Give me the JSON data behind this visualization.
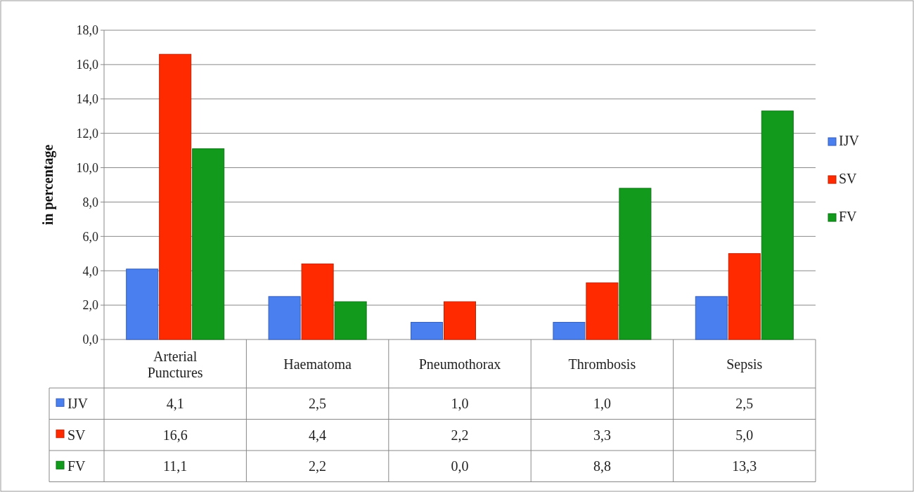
{
  "chart_data": {
    "type": "bar",
    "ylabel": "in percentage",
    "categories": [
      "Arterial Punctures",
      "Haematoma",
      "Pneumothorax",
      "Thrombosis",
      "Sepsis"
    ],
    "series": [
      {
        "name": "IJV",
        "color": "#4a7ff0",
        "values": [
          4.1,
          2.5,
          1.0,
          1.0,
          2.5
        ],
        "value_labels": [
          "4,1",
          "2,5",
          "1,0",
          "1,0",
          "2,5"
        ]
      },
      {
        "name": "SV",
        "color": "#ff2a00",
        "values": [
          16.6,
          4.4,
          2.2,
          3.3,
          5.0
        ],
        "value_labels": [
          "16,6",
          "4,4",
          "2,2",
          "3,3",
          "5,0"
        ]
      },
      {
        "name": "FV",
        "color": "#119a1c",
        "values": [
          11.1,
          2.2,
          0.0,
          8.8,
          13.3
        ],
        "value_labels": [
          "11,1",
          "2,2",
          "0,0",
          "8,8",
          "13,3"
        ]
      }
    ],
    "ylim": [
      0,
      18
    ],
    "yticks": [
      {
        "value": 0,
        "label": "0,0"
      },
      {
        "value": 2,
        "label": "2,0"
      },
      {
        "value": 4,
        "label": "4,0"
      },
      {
        "value": 6,
        "label": "6,0"
      },
      {
        "value": 8,
        "label": "8,0"
      },
      {
        "value": 10,
        "label": "10,0"
      },
      {
        "value": 12,
        "label": "12,0"
      },
      {
        "value": 14,
        "label": "14,0"
      },
      {
        "value": 16,
        "label": "16,0"
      },
      {
        "value": 18,
        "label": "18,0"
      }
    ],
    "grid": "y",
    "legend": "right"
  }
}
